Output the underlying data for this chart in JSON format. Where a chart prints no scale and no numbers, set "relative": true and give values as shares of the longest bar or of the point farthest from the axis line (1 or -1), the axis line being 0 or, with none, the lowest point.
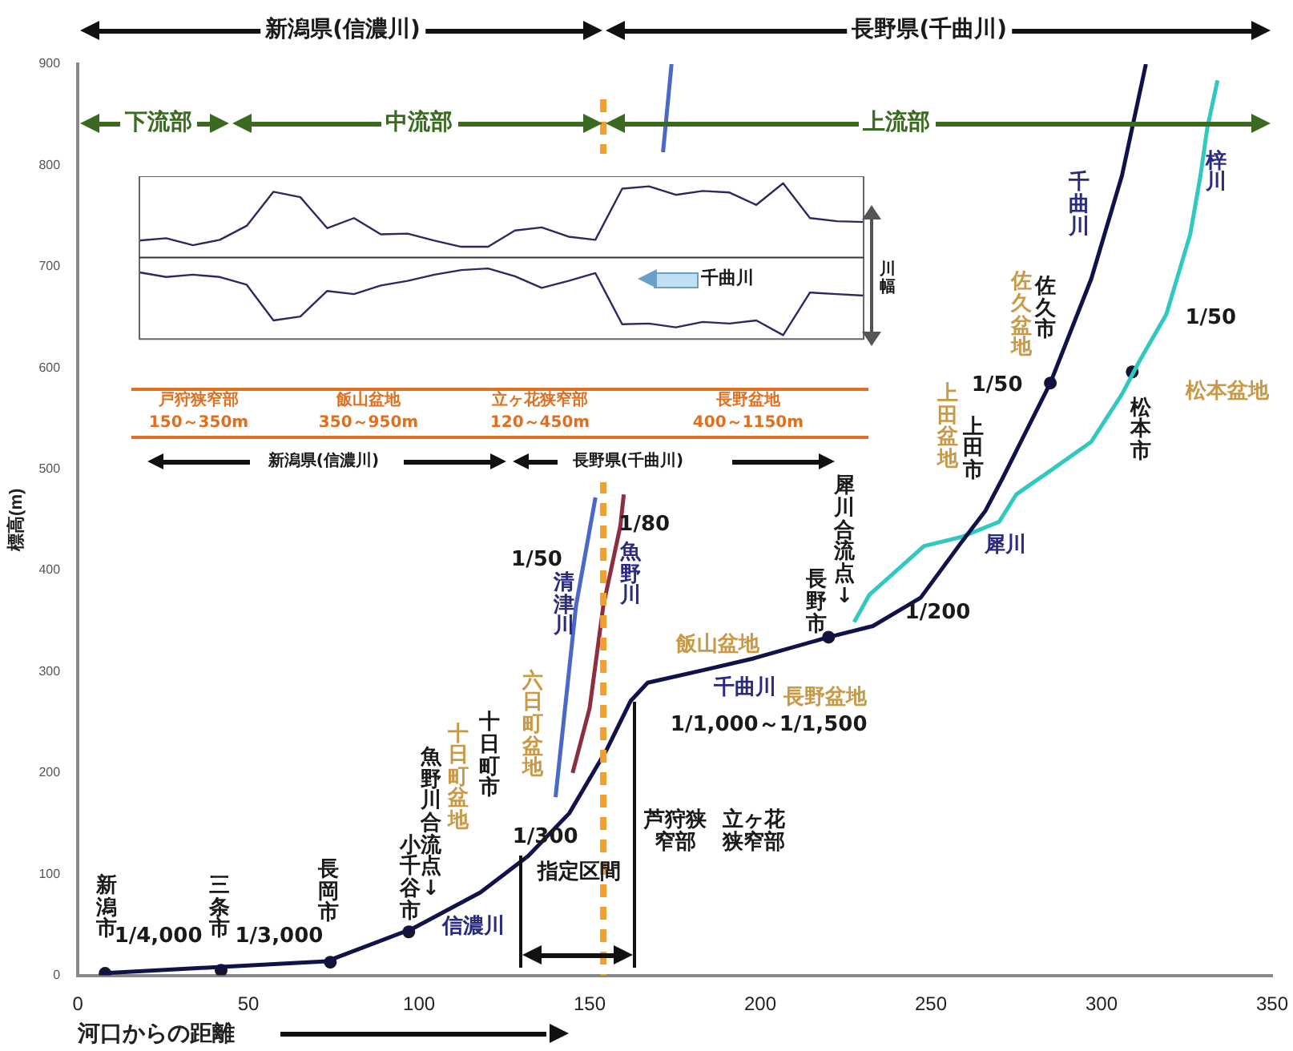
{
  "chart_data": [
    {
      "type": "line",
      "xlabel": "河口からの距離",
      "ylabel": "標高(m)",
      "xlim": [
        0,
        350
      ],
      "xticks": [
        0,
        50,
        100,
        150,
        200,
        250,
        300,
        350
      ],
      "ylim": [
        0,
        900
      ],
      "yticks": [
        0,
        100,
        200,
        300,
        400,
        500,
        600,
        700,
        800,
        900
      ],
      "grid": false,
      "legend": false,
      "series": [
        {
          "color": "#12124a",
          "marker": "none",
          "x": [
            7,
            40,
            73,
            98,
            118,
            132,
            144,
            155,
            162,
            167,
            184,
            198,
            220,
            233,
            247,
            259,
            266,
            271,
            285,
            297,
            306,
            313
          ],
          "values": [
            2,
            8,
            14,
            46,
            82,
            118,
            160,
            223,
            271,
            289,
            302,
            313,
            334,
            345,
            373,
            428,
            459,
            491,
            585,
            688,
            790,
            900
          ]
        },
        {
          "color": "#30c8c0",
          "marker": "none",
          "x": [
            227.5,
            232,
            248,
            259,
            270,
            275,
            284,
            297,
            306,
            311,
            319,
            326,
            329,
            331,
            334
          ],
          "values": [
            349,
            376,
            424,
            433,
            448,
            475,
            496,
            527,
            574,
            606,
            653,
            732,
            790,
            837,
            884
          ]
        },
        {
          "color": "#4a68c8",
          "marker": "none",
          "x": [
            140,
            146,
            151.7,
            160,
            171.5,
            174
          ],
          "values": [
            176,
            365,
            472,
            null,
            813,
            900
          ]
        },
        {
          "color": "#8a3040",
          "marker": "none",
          "x": [
            145,
            150,
            154,
            159,
            160
          ],
          "values": [
            200,
            264,
            365,
            444,
            475
          ]
        },
        {
          "type": "scatter",
          "color": "#151530",
          "marker": "circle",
          "x": [
            8,
            42,
            74,
            97,
            220,
            285,
            309
          ],
          "values": [
            2,
            5,
            13,
            43,
            334,
            585,
            596
          ]
        }
      ],
      "ref_lines": [
        {
          "axis": "x",
          "value": 154,
          "color": "#f0a030",
          "line_style": "dashed"
        }
      ],
      "annotations": [
        "新潟市",
        "1/4,000",
        "三条市",
        "1/3,000",
        "長岡市",
        "小千谷市",
        "魚野川合流点↓",
        "十日町盆地",
        "十日町市",
        "六日町盆地",
        "信濃川",
        "1/300",
        "清津川",
        "1/50",
        "魚野川",
        "1/80",
        "飯山盆地",
        "千曲川",
        "長野盆地",
        "1/1,000～1/1,500",
        "芦狩狭窄部",
        "立ヶ花狭窄部",
        "犀川合流点↓",
        "長野市",
        "1/200",
        "上田盆地",
        "上田市",
        "1/50",
        "佐久盆地",
        "佐久市",
        "1/50",
        "松本盆地",
        "松本市",
        "千曲川",
        "梓川",
        "犀川",
        "下流部",
        "中流部",
        "上流部",
        "新潟県(信濃川)",
        "長野県(千曲川)",
        "指定区間"
      ]
    },
    {
      "type": "line",
      "relative": true,
      "legend": false,
      "categories": [
        null,
        null,
        null,
        null,
        null,
        null,
        null,
        null,
        null,
        null,
        null,
        null,
        null,
        null,
        null,
        null,
        null,
        null,
        null,
        null,
        null,
        null,
        null,
        null,
        null,
        null,
        null,
        null
      ],
      "series": [
        {
          "color": "#2a2a60",
          "values": [
            0.22,
            0.25,
            0.16,
            0.23,
            0.41,
            0.85,
            0.78,
            0.38,
            0.51,
            0.3,
            0.31,
            0.22,
            0.14,
            0.14,
            0.35,
            0.39,
            0.27,
            0.23,
            0.89,
            0.92,
            0.81,
            0.86,
            0.84,
            0.68,
            0.96,
            0.51,
            0.47,
            0.46
          ]
        },
        {
          "color": "#2a2a60",
          "values": [
            -0.19,
            -0.25,
            -0.22,
            -0.25,
            -0.35,
            -0.81,
            -0.76,
            -0.43,
            -0.47,
            -0.36,
            -0.3,
            -0.22,
            -0.16,
            -0.14,
            -0.24,
            -0.39,
            -0.3,
            -0.2,
            -0.86,
            -0.85,
            -0.9,
            -0.83,
            -0.85,
            -0.81,
            -1,
            -0.45,
            -0.47,
            -0.49
          ]
        }
      ],
      "annotations": [
        "千曲川",
        "川幅",
        "戸狩狭窄部",
        "150～350m",
        "飯山盆地",
        "350～950m",
        "立ヶ花狭窄部",
        "120～450m",
        "長野盆地",
        "400～1150m",
        "新潟県(信濃川)",
        "長野県(千曲川)"
      ]
    }
  ]
}
